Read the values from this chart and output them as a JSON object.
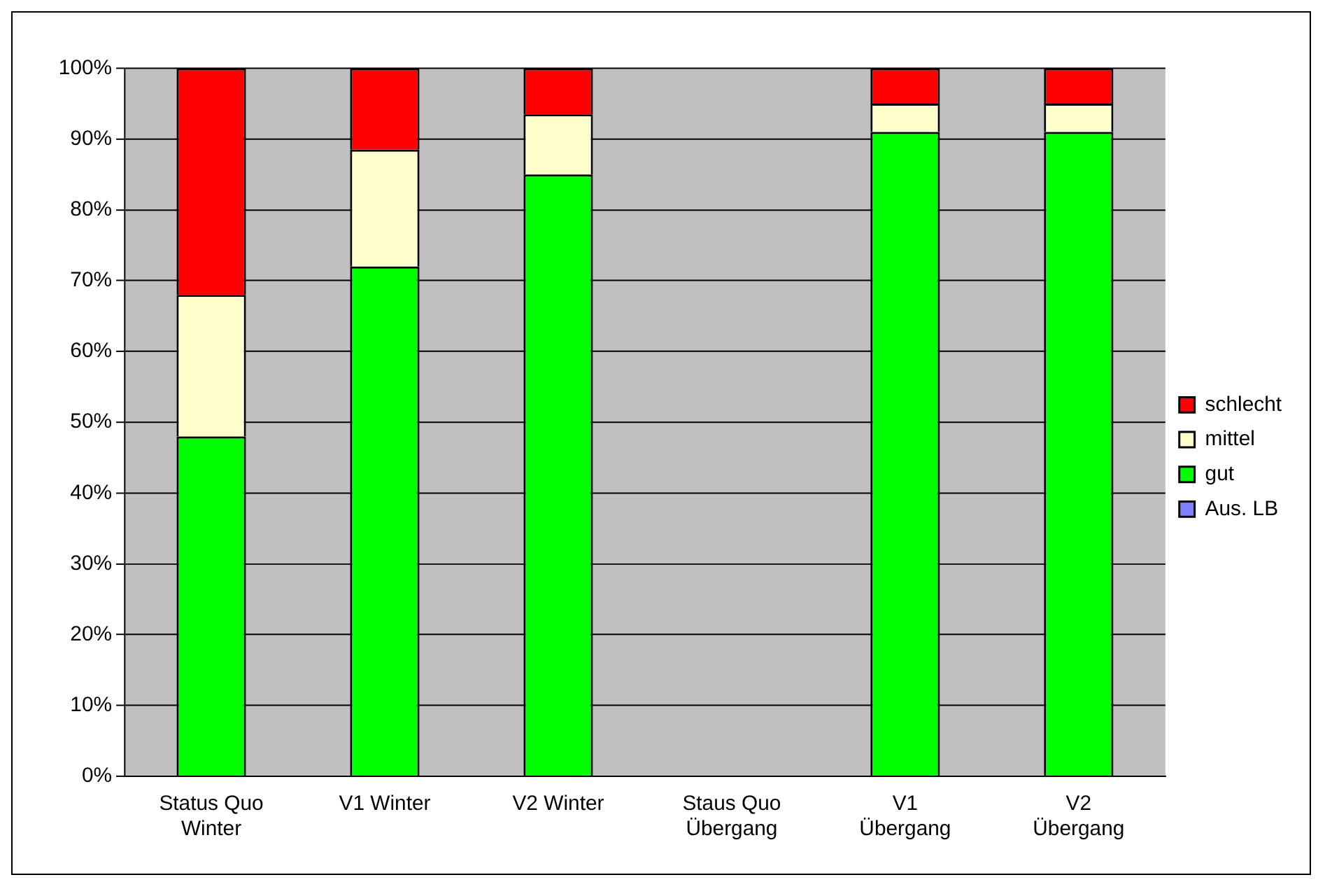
{
  "chart_data": {
    "type": "bar",
    "stacked": true,
    "categories": [
      "Status Quo\nWinter",
      "V1 Winter",
      "V2 Winter",
      "Staus Quo\nÜbergang",
      "V1\nÜbergang",
      "V2\nÜbergang"
    ],
    "series": [
      {
        "name": "Aus. LB",
        "color": "#8080ff",
        "values": [
          0,
          0,
          0,
          0,
          0,
          0
        ]
      },
      {
        "name": "gut",
        "color": "#00ff00",
        "values": [
          48,
          72,
          85,
          0,
          91,
          91
        ]
      },
      {
        "name": "mittel",
        "color": "#ffffcc",
        "values": [
          20,
          16.5,
          8.5,
          0,
          4,
          4
        ]
      },
      {
        "name": "schlecht",
        "color": "#ff0000",
        "values": [
          32,
          11.5,
          6.5,
          0,
          5,
          5
        ]
      }
    ],
    "ylim": [
      0,
      100
    ],
    "yticks": [
      {
        "value": 0,
        "label": "0%"
      },
      {
        "value": 10,
        "label": "10%"
      },
      {
        "value": 20,
        "label": "20%"
      },
      {
        "value": 30,
        "label": "30%"
      },
      {
        "value": 40,
        "label": "40%"
      },
      {
        "value": 50,
        "label": "50%"
      },
      {
        "value": 60,
        "label": "60%"
      },
      {
        "value": 70,
        "label": "70%"
      },
      {
        "value": 80,
        "label": "80%"
      },
      {
        "value": 90,
        "label": "90%"
      },
      {
        "value": 100,
        "label": "100%"
      }
    ],
    "grid": "y",
    "legend": "right"
  }
}
